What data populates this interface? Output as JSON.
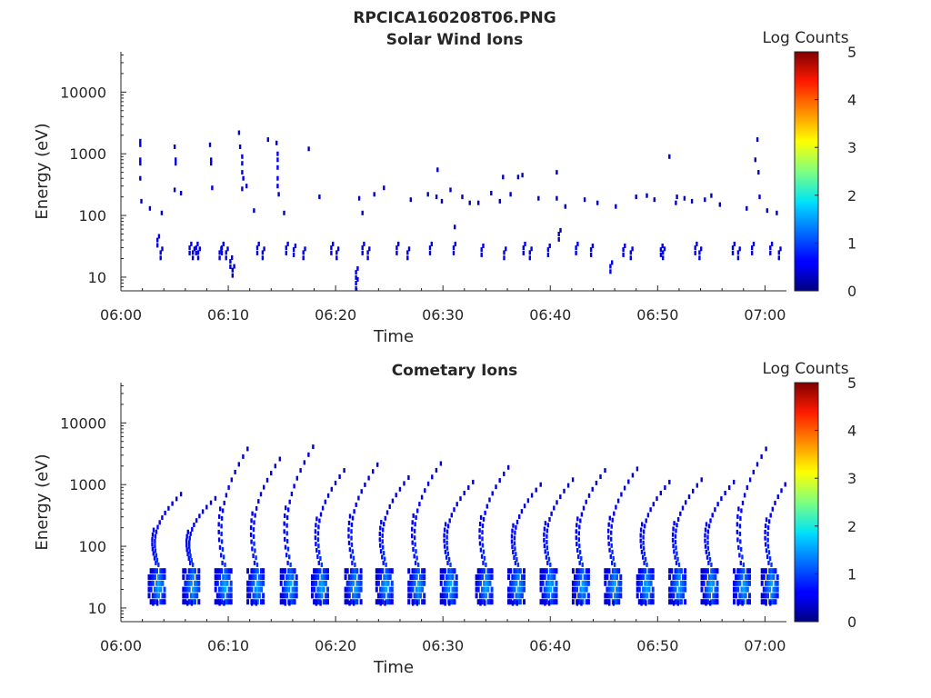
{
  "figure_title": "RPCICA160208T06.PNG",
  "chart_data": [
    {
      "type": "heatmap",
      "title": "Solar Wind Ions",
      "xlabel": "Time",
      "ylabel": "Energy (eV)",
      "y_scale": "log",
      "xlim": [
        "06:00",
        "07:02"
      ],
      "ylim": [
        6,
        45000
      ],
      "x_ticks": [
        "06:00",
        "06:10",
        "06:20",
        "06:30",
        "06:40",
        "06:50",
        "07:00"
      ],
      "y_ticks": [
        "10",
        "100",
        "1000",
        "10000"
      ],
      "colorbar": {
        "label": "Log Counts",
        "min": 0,
        "max": 5,
        "ticks": [
          "0",
          "1",
          "2",
          "3",
          "4",
          "5"
        ],
        "colormap": "jet"
      },
      "grid": false,
      "points": [
        [
          1.7,
          1600,
          0.5
        ],
        [
          1.7,
          1400,
          0.4
        ],
        [
          1.7,
          800,
          0.5
        ],
        [
          1.7,
          700,
          0.4
        ],
        [
          1.7,
          400,
          0.3
        ],
        [
          1.8,
          170,
          0.3
        ],
        [
          2.6,
          130,
          0.4
        ],
        [
          3.3,
          40,
          0.5
        ],
        [
          3.6,
          25,
          0.5
        ],
        [
          3.7,
          110,
          0.4
        ],
        [
          4.9,
          1300,
          0.4
        ],
        [
          5.0,
          800,
          0.5
        ],
        [
          5.0,
          700,
          0.5
        ],
        [
          4.9,
          260,
          0.3
        ],
        [
          5.5,
          230,
          0.4
        ],
        [
          6.3,
          30,
          0.5
        ],
        [
          6.6,
          25,
          0.5
        ],
        [
          6.9,
          30,
          0.5
        ],
        [
          7.1,
          25,
          0.5
        ],
        [
          8.2,
          1400,
          0.4
        ],
        [
          8.3,
          800,
          0.5
        ],
        [
          8.3,
          700,
          0.5
        ],
        [
          8.4,
          280,
          0.4
        ],
        [
          9.1,
          25,
          0.5
        ],
        [
          9.3,
          30,
          0.5
        ],
        [
          9.7,
          25,
          0.5
        ],
        [
          10.1,
          18,
          0.4
        ],
        [
          10.3,
          13,
          0.3
        ],
        [
          10.9,
          2200,
          0.4
        ],
        [
          11.0,
          1300,
          0.5
        ],
        [
          11.2,
          900,
          0.6
        ],
        [
          11.2,
          700,
          0.6
        ],
        [
          11.2,
          500,
          0.6
        ],
        [
          11.3,
          400,
          0.5
        ],
        [
          11.2,
          270,
          0.4
        ],
        [
          11.6,
          300,
          0.4
        ],
        [
          12.3,
          120,
          0.3
        ],
        [
          12.6,
          30,
          0.5
        ],
        [
          13.1,
          25,
          0.5
        ],
        [
          13.6,
          1700,
          0.4
        ],
        [
          14.4,
          1500,
          0.5
        ],
        [
          14.5,
          1000,
          0.6
        ],
        [
          14.5,
          800,
          0.6
        ],
        [
          14.5,
          600,
          0.6
        ],
        [
          14.5,
          400,
          0.6
        ],
        [
          14.5,
          300,
          0.5
        ],
        [
          14.6,
          220,
          0.4
        ],
        [
          15.1,
          110,
          0.3
        ],
        [
          15.3,
          30,
          0.5
        ],
        [
          16.0,
          28,
          0.5
        ],
        [
          16.9,
          25,
          0.5
        ],
        [
          17.4,
          1200,
          0.3
        ],
        [
          18.4,
          200,
          0.3
        ],
        [
          19.5,
          30,
          0.5
        ],
        [
          20.0,
          25,
          0.5
        ],
        [
          21.8,
          12,
          0.5
        ],
        [
          21.8,
          8,
          0.6
        ],
        [
          22.1,
          190,
          0.3
        ],
        [
          22.4,
          110,
          0.3
        ],
        [
          22.4,
          30,
          0.5
        ],
        [
          22.9,
          25,
          0.5
        ],
        [
          23.5,
          220,
          0.3
        ],
        [
          24.4,
          280,
          0.3
        ],
        [
          25.6,
          30,
          0.5
        ],
        [
          26.6,
          25,
          0.5
        ],
        [
          26.9,
          180,
          0.3
        ],
        [
          28.5,
          220,
          0.3
        ],
        [
          28.7,
          30,
          0.5
        ],
        [
          29.3,
          200,
          0.3
        ],
        [
          29.4,
          550,
          0.3
        ],
        [
          29.8,
          170,
          0.3
        ],
        [
          30.6,
          260,
          0.3
        ],
        [
          30.9,
          30,
          0.5
        ],
        [
          31.0,
          65,
          0.3
        ],
        [
          31.7,
          200,
          0.3
        ],
        [
          32.4,
          160,
          0.3
        ],
        [
          33.2,
          160,
          0.3
        ],
        [
          33.5,
          28,
          0.5
        ],
        [
          34.4,
          230,
          0.3
        ],
        [
          35.2,
          170,
          0.3
        ],
        [
          35.5,
          420,
          0.3
        ],
        [
          35.6,
          25,
          0.5
        ],
        [
          36.2,
          220,
          0.3
        ],
        [
          36.9,
          420,
          0.3
        ],
        [
          37.3,
          450,
          0.3
        ],
        [
          37.4,
          30,
          0.5
        ],
        [
          38.0,
          25,
          0.5
        ],
        [
          38.8,
          190,
          0.3
        ],
        [
          39.7,
          28,
          0.5
        ],
        [
          40.5,
          500,
          0.3
        ],
        [
          40.5,
          190,
          0.3
        ],
        [
          40.7,
          50,
          0.3
        ],
        [
          41.3,
          140,
          0.3
        ],
        [
          42.3,
          30,
          0.5
        ],
        [
          43.1,
          180,
          0.3
        ],
        [
          43.7,
          28,
          0.5
        ],
        [
          44.3,
          160,
          0.3
        ],
        [
          45.5,
          15,
          0.5
        ],
        [
          46.0,
          140,
          0.3
        ],
        [
          46.7,
          28,
          0.5
        ],
        [
          47.4,
          25,
          0.5
        ],
        [
          47.9,
          200,
          0.3
        ],
        [
          48.9,
          210,
          0.3
        ],
        [
          49.6,
          180,
          0.3
        ],
        [
          50.2,
          28,
          0.5
        ],
        [
          50.4,
          25,
          0.5
        ],
        [
          51.0,
          900,
          0.3
        ],
        [
          51.6,
          160,
          0.3
        ],
        [
          51.7,
          200,
          0.3
        ],
        [
          52.4,
          190,
          0.3
        ],
        [
          53.1,
          170,
          0.3
        ],
        [
          53.4,
          30,
          0.5
        ],
        [
          53.8,
          25,
          0.5
        ],
        [
          54.3,
          180,
          0.3
        ],
        [
          54.9,
          210,
          0.3
        ],
        [
          55.7,
          150,
          0.3
        ],
        [
          56.9,
          30,
          0.5
        ],
        [
          57.4,
          25,
          0.5
        ],
        [
          58.2,
          130,
          0.3
        ],
        [
          58.7,
          30,
          0.5
        ],
        [
          59.0,
          800,
          0.3
        ],
        [
          59.2,
          1700,
          0.3
        ],
        [
          59.3,
          500,
          0.3
        ],
        [
          59.4,
          200,
          0.4
        ],
        [
          60.1,
          120,
          0.3
        ],
        [
          60.4,
          30,
          0.5
        ],
        [
          61.0,
          110,
          0.3
        ],
        [
          61.2,
          25,
          0.5
        ]
      ]
    },
    {
      "type": "heatmap",
      "title": "Cometary Ions",
      "xlabel": "Time",
      "ylabel": "Energy (eV)",
      "y_scale": "log",
      "xlim": [
        "06:00",
        "07:02"
      ],
      "ylim": [
        6,
        45000
      ],
      "x_ticks": [
        "06:00",
        "06:10",
        "06:20",
        "06:30",
        "06:40",
        "06:50",
        "07:00"
      ],
      "y_ticks": [
        "10",
        "100",
        "1000",
        "10000"
      ],
      "colorbar": {
        "label": "Log Counts",
        "min": 0,
        "max": 5,
        "ticks": [
          "0",
          "1",
          "2",
          "3",
          "4",
          "5"
        ],
        "colormap": "jet"
      },
      "grid": false,
      "bursts_start_min": [
        2.5,
        5.7,
        8.7,
        11.7,
        14.8,
        17.7,
        20.8,
        23.7,
        26.7,
        29.7,
        33.0,
        36.0,
        39.0,
        42.0,
        45.0,
        48.0,
        51.0,
        54.0,
        57.0,
        59.6
      ],
      "burst_peak_ev": [
        700,
        600,
        3800,
        2600,
        4100,
        1700,
        2100,
        1300,
        2200,
        1100,
        1900,
        1000,
        1200,
        1700,
        1800,
        1100,
        1200,
        1100,
        3800,
        1600
      ]
    }
  ]
}
